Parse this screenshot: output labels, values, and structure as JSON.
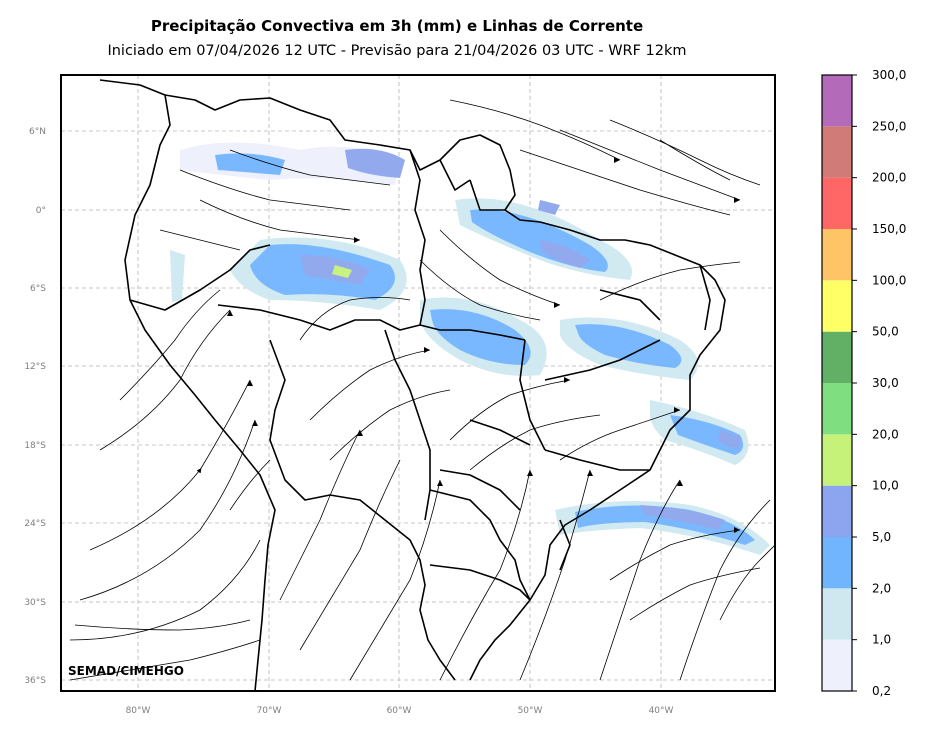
{
  "title": "Precipitação Convectiva em 3h (mm) e Linhas de Corrente",
  "subtitle": "Iniciado em 07/04/2026 12 UTC - Previsão para 21/04/2026 03 UTC - WRF 12km",
  "credit": "SEMAD/CIMEHGO",
  "lat_labels": [
    "6°N",
    "0°",
    "6°S",
    "12°S",
    "18°S",
    "24°S",
    "30°S",
    "36°S"
  ],
  "lon_labels": [
    "80°W",
    "70°W",
    "60°W",
    "50°W",
    "40°W"
  ],
  "colorbar": {
    "levels": [
      "0,2",
      "1,0",
      "2,0",
      "5,0",
      "10,0",
      "20,0",
      "30,0",
      "50,0",
      "100,0",
      "150,0",
      "200,0",
      "250,0",
      "300,0"
    ],
    "colors": [
      "#eef0fb",
      "#cfe8f0",
      "#72b5ff",
      "#8da5ee",
      "#c6f27a",
      "#7fde7f",
      "#62b066",
      "#ffff66",
      "#ffc466",
      "#ff6666",
      "#d17b78",
      "#b36ab8"
    ]
  },
  "colors": {
    "frame": "#000000",
    "grid": "#b0b0b0",
    "border": "#000000",
    "streamline": "#000000"
  }
}
